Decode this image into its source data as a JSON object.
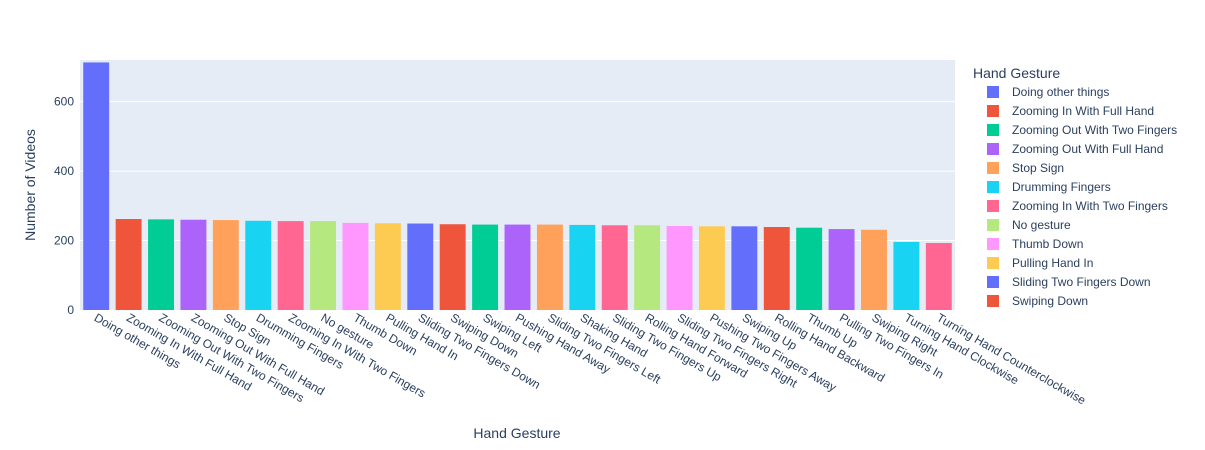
{
  "chart_data": {
    "type": "bar",
    "xlabel": "Hand Gesture",
    "ylabel": "Number of Videos",
    "ylim": [
      0,
      720
    ],
    "yticks": [
      0,
      200,
      400,
      600
    ],
    "grid": true,
    "legend_title": "Hand Gesture",
    "legend_position": "right",
    "categories": [
      "Doing other things",
      "Zooming In With Full Hand",
      "Zooming Out With Two Fingers",
      "Zooming Out With Full Hand",
      "Stop Sign",
      "Drumming Fingers",
      "Zooming In With Two Fingers",
      "No gesture",
      "Thumb Down",
      "Pulling Hand In",
      "Sliding Two Fingers Down",
      "Swiping Down",
      "Swiping Left",
      "Pushing Hand Away",
      "Sliding Two Fingers Left",
      "Shaking Hand",
      "Sliding Two Fingers Up",
      "Rolling Hand Forward",
      "Sliding Two Fingers Right",
      "Pushing Two Fingers Away",
      "Swiping Up",
      "Rolling Hand Backward",
      "Thumb Up",
      "Pulling Two Fingers In",
      "Swiping Right",
      "Turning Hand Clockwise",
      "Turning Hand Counterclockwise"
    ],
    "values": [
      713,
      262,
      261,
      260,
      259,
      257,
      256,
      256,
      251,
      250,
      249,
      247,
      246,
      246,
      246,
      245,
      244,
      244,
      242,
      241,
      241,
      239,
      237,
      233,
      231,
      196,
      193
    ],
    "colors": [
      "#636efa",
      "#ef553b",
      "#00cc96",
      "#ab63fa",
      "#ffa15a",
      "#19d3f3",
      "#ff6692",
      "#b6e880",
      "#ff97ff",
      "#fecb52"
    ],
    "legend_visible_count": 12
  }
}
